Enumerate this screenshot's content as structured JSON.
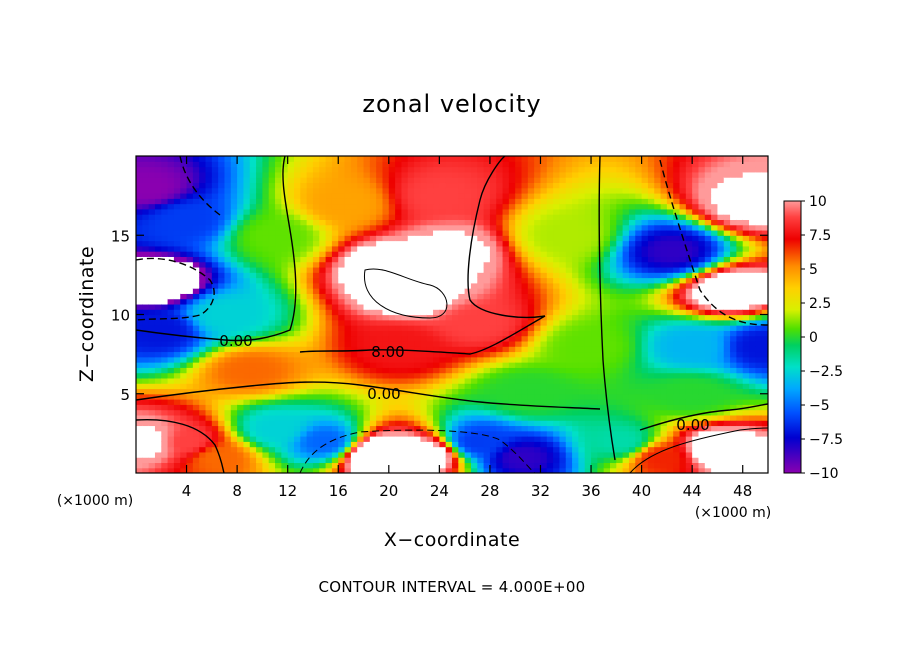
{
  "chart_data": {
    "type": "heatmap",
    "title": "zonal velocity",
    "xlabel": "X−coordinate",
    "ylabel": "Z−coordinate",
    "x_unit": "(×1000 m)",
    "y_unit": "(×1000 m)",
    "xlim": [
      0,
      50
    ],
    "ylim": [
      0,
      20
    ],
    "x_ticks": [
      4,
      8,
      12,
      16,
      20,
      24,
      28,
      32,
      36,
      40,
      44,
      48
    ],
    "y_ticks": [
      5,
      10,
      15
    ],
    "x_tick_labels": [
      "4",
      "8",
      "12",
      "16",
      "20",
      "24",
      "28",
      "32",
      "36",
      "40",
      "44",
      "48"
    ],
    "y_tick_labels": [
      "5",
      "10",
      "15"
    ],
    "colorbar": {
      "min": -10,
      "max": 10,
      "ticks": [
        10,
        7.5,
        5,
        2.5,
        0,
        -2.5,
        -5,
        -7.5,
        -10
      ],
      "tick_labels": [
        "10",
        "7.5",
        "5",
        "2.5",
        "0",
        "−2.5",
        "−5",
        "−7.5",
        "−10"
      ]
    },
    "contour_interval_text": "CONTOUR INTERVAL = 4.000E+00",
    "contour_labels": [
      {
        "text": "0.00",
        "x": 7.8,
        "z": 8.1
      },
      {
        "text": "8.00",
        "x": 19.8,
        "z": 7.5
      },
      {
        "text": "0.00",
        "x": 19.5,
        "z": 4.9
      },
      {
        "text": "0.00",
        "x": 44.4,
        "z": 2.9
      }
    ],
    "field_features": [
      {
        "x": 22,
        "z": 11.5,
        "u": 12
      },
      {
        "x": 20,
        "z": 13,
        "u": 12
      },
      {
        "x": 25,
        "z": 14,
        "u": 11
      },
      {
        "x": 27,
        "z": 9.5,
        "u": 9
      },
      {
        "x": 21,
        "z": 8,
        "u": 8
      },
      {
        "x": 24,
        "z": 17.5,
        "u": 9
      },
      {
        "x": 16.5,
        "z": 17,
        "u": 5
      },
      {
        "x": 9,
        "z": 6.5,
        "u": 6
      },
      {
        "x": 2,
        "z": 12,
        "u": -12
      },
      {
        "x": 1,
        "z": 18,
        "u": -10
      },
      {
        "x": 4,
        "z": 16,
        "u": -7
      },
      {
        "x": 2,
        "z": 9,
        "u": -8
      },
      {
        "x": 1,
        "z": 2,
        "u": 11
      },
      {
        "x": 4,
        "z": 2,
        "u": 9
      },
      {
        "x": 6.5,
        "z": 1,
        "u": 6
      },
      {
        "x": 19,
        "z": 1.2,
        "u": 14
      },
      {
        "x": 23,
        "z": 1.2,
        "u": 12
      },
      {
        "x": 27,
        "z": 2,
        "u": -7
      },
      {
        "x": 30.5,
        "z": 1,
        "u": -9
      },
      {
        "x": 15,
        "z": 2,
        "u": -6
      },
      {
        "x": 11,
        "z": 2.8,
        "u": -3
      },
      {
        "x": 47,
        "z": 11.5,
        "u": 12
      },
      {
        "x": 48.5,
        "z": 17,
        "u": 11
      },
      {
        "x": 42.5,
        "z": 14,
        "u": -9
      },
      {
        "x": 49.5,
        "z": 8,
        "u": -8
      },
      {
        "x": 44,
        "z": 8,
        "u": -4
      },
      {
        "x": 46,
        "z": 1.5,
        "u": 12
      },
      {
        "x": 41.5,
        "z": 1,
        "u": 7
      },
      {
        "x": 38.5,
        "z": 2,
        "u": -2
      },
      {
        "x": 36,
        "z": 8,
        "u": 1
      },
      {
        "x": 34,
        "z": 15,
        "u": 2
      },
      {
        "x": 11,
        "z": 15,
        "u": 1
      },
      {
        "x": 7,
        "z": 10,
        "u": -3
      },
      {
        "x": 31,
        "z": 5,
        "u": 0
      },
      {
        "x": 44,
        "z": 5,
        "u": 0
      }
    ]
  }
}
